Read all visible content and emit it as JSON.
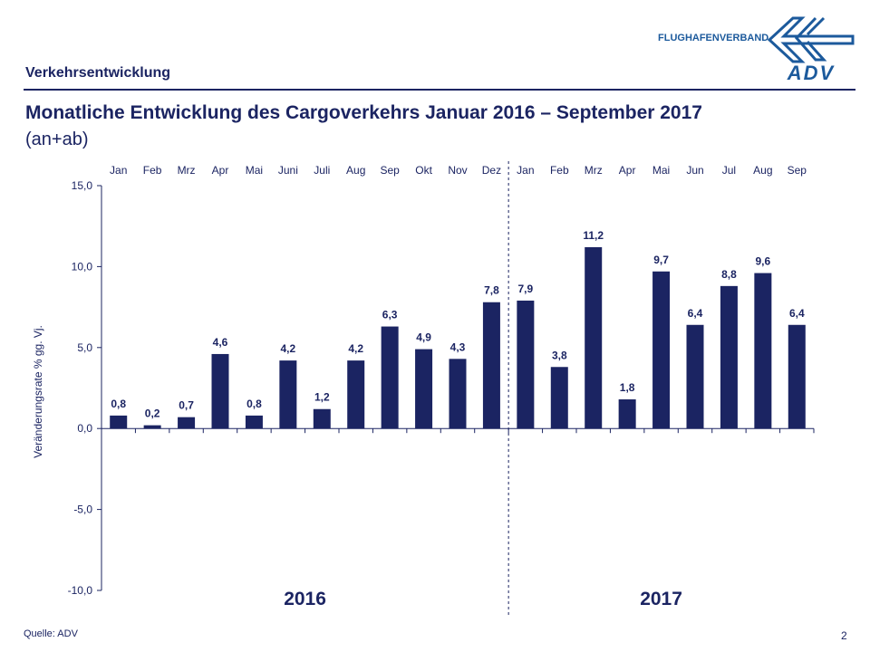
{
  "header": {
    "section": "Verkehrsentwicklung",
    "title": "Monatliche Entwicklung des Cargoverkehrs Januar 2016 – September 2017",
    "subtitle": "(an+ab)"
  },
  "logo": {
    "text": "FLUGHAFENVERBAND",
    "mark": "ADV",
    "color": "#1c5a9c"
  },
  "footer": {
    "source": "Quelle: ADV",
    "page": "2"
  },
  "chart_data": {
    "type": "bar",
    "categories": [
      "Jan",
      "Feb",
      "Mrz",
      "Apr",
      "Mai",
      "Juni",
      "Juli",
      "Aug",
      "Sep",
      "Okt",
      "Nov",
      "Dez",
      "Jan",
      "Feb",
      "Mrz",
      "Apr",
      "Mai",
      "Jun",
      "Jul",
      "Aug",
      "Sep"
    ],
    "values": [
      0.8,
      0.2,
      0.7,
      4.6,
      0.8,
      4.2,
      1.2,
      4.2,
      6.3,
      4.9,
      4.3,
      7.8,
      7.9,
      3.8,
      11.2,
      1.8,
      9.7,
      6.4,
      8.8,
      9.6,
      6.4
    ],
    "labels": [
      "0,8",
      "0,2",
      "0,7",
      "4,6",
      "0,8",
      "4,2",
      "1,2",
      "4,2",
      "6,3",
      "4,9",
      "4,3",
      "7,8",
      "7,9",
      "3,8",
      "11,2",
      "1,8",
      "9,7",
      "6,4",
      "8,8",
      "9,6",
      "6,4"
    ],
    "groups": [
      {
        "label": "2016",
        "count": 12
      },
      {
        "label": "2017",
        "count": 9
      }
    ],
    "ylabel": "Veränderungsrate % gg. Vj.",
    "ylim": [
      -10,
      15
    ],
    "yticks": [
      "15,0",
      "10,0",
      "5,0",
      "0,0",
      "-5,0",
      "-10,0"
    ],
    "ytick_values": [
      15,
      10,
      5,
      0,
      -5,
      -10
    ],
    "grid": false,
    "bar_color": "#1b2462"
  }
}
